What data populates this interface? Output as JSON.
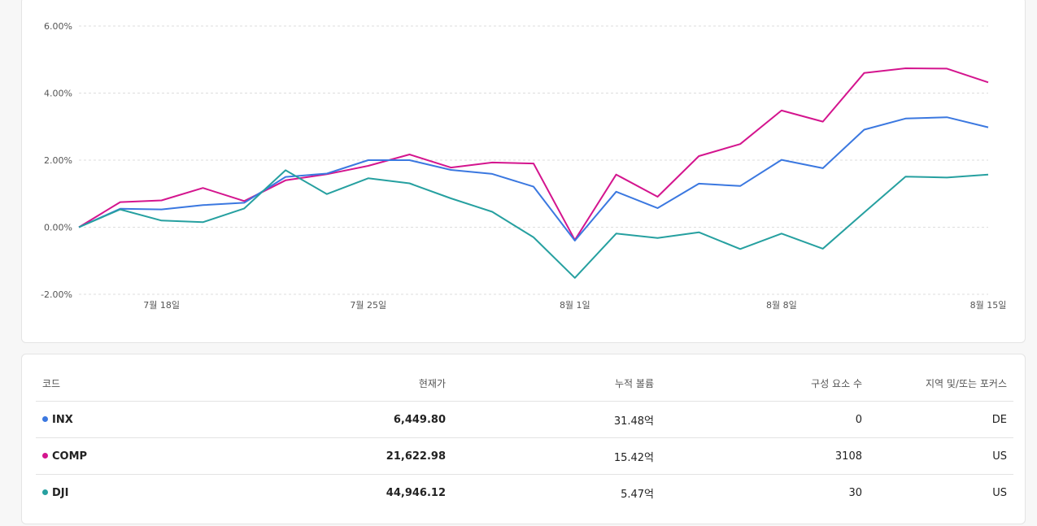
{
  "chart_data": {
    "type": "line",
    "title": "",
    "xlabel": "",
    "ylabel": "",
    "ylim": [
      -2.0,
      6.0
    ],
    "y_ticks": [
      "6.00%",
      "4.00%",
      "2.00%",
      "0.00%",
      "-2.00%"
    ],
    "y_tick_values": [
      6,
      4,
      2,
      0,
      -2
    ],
    "x_tick_labels": [
      "7월 18일",
      "7월 25일",
      "8월 1일",
      "8월 8일",
      "8월 15일"
    ],
    "x_tick_indices": [
      2,
      7,
      12,
      17,
      22
    ],
    "grid": true,
    "series": [
      {
        "name": "COMP",
        "color": "#d4158e",
        "values": [
          0.0,
          0.75,
          0.8,
          1.17,
          0.78,
          1.4,
          1.58,
          1.83,
          2.17,
          1.78,
          1.93,
          1.9,
          -0.38,
          1.57,
          0.91,
          2.12,
          2.48,
          3.48,
          3.15,
          4.6,
          4.74,
          4.73,
          4.32
        ]
      },
      {
        "name": "INX",
        "color": "#3b78e0",
        "values": [
          0.0,
          0.55,
          0.53,
          0.66,
          0.73,
          1.5,
          1.6,
          2.0,
          2.0,
          1.71,
          1.59,
          1.21,
          -0.4,
          1.06,
          0.57,
          1.3,
          1.23,
          2.01,
          1.76,
          2.91,
          3.24,
          3.28,
          2.98
        ]
      },
      {
        "name": "DJI",
        "color": "#26a0a0",
        "values": [
          0.0,
          0.53,
          0.2,
          0.15,
          0.56,
          1.7,
          0.99,
          1.46,
          1.31,
          0.86,
          0.46,
          -0.3,
          -1.51,
          -0.19,
          -0.32,
          -0.15,
          -0.65,
          -0.19,
          -0.64,
          0.44,
          1.51,
          1.48,
          1.57
        ]
      }
    ]
  },
  "table": {
    "headers": {
      "code": "코드",
      "price": "현재가",
      "volume": "누적 볼륨",
      "components": "구성 요소 수",
      "region": "지역 및/또는 포커스"
    },
    "rows": [
      {
        "code": "INX",
        "color": "#3b78e0",
        "price": "6,449.80",
        "volume": "31.48억",
        "components": "0",
        "region": "DE"
      },
      {
        "code": "COMP",
        "color": "#d4158e",
        "price": "21,622.98",
        "volume": "15.42억",
        "components": "3108",
        "region": "US"
      },
      {
        "code": "DJI",
        "color": "#26a0a0",
        "price": "44,946.12",
        "volume": "5.47억",
        "components": "30",
        "region": "US"
      }
    ]
  }
}
